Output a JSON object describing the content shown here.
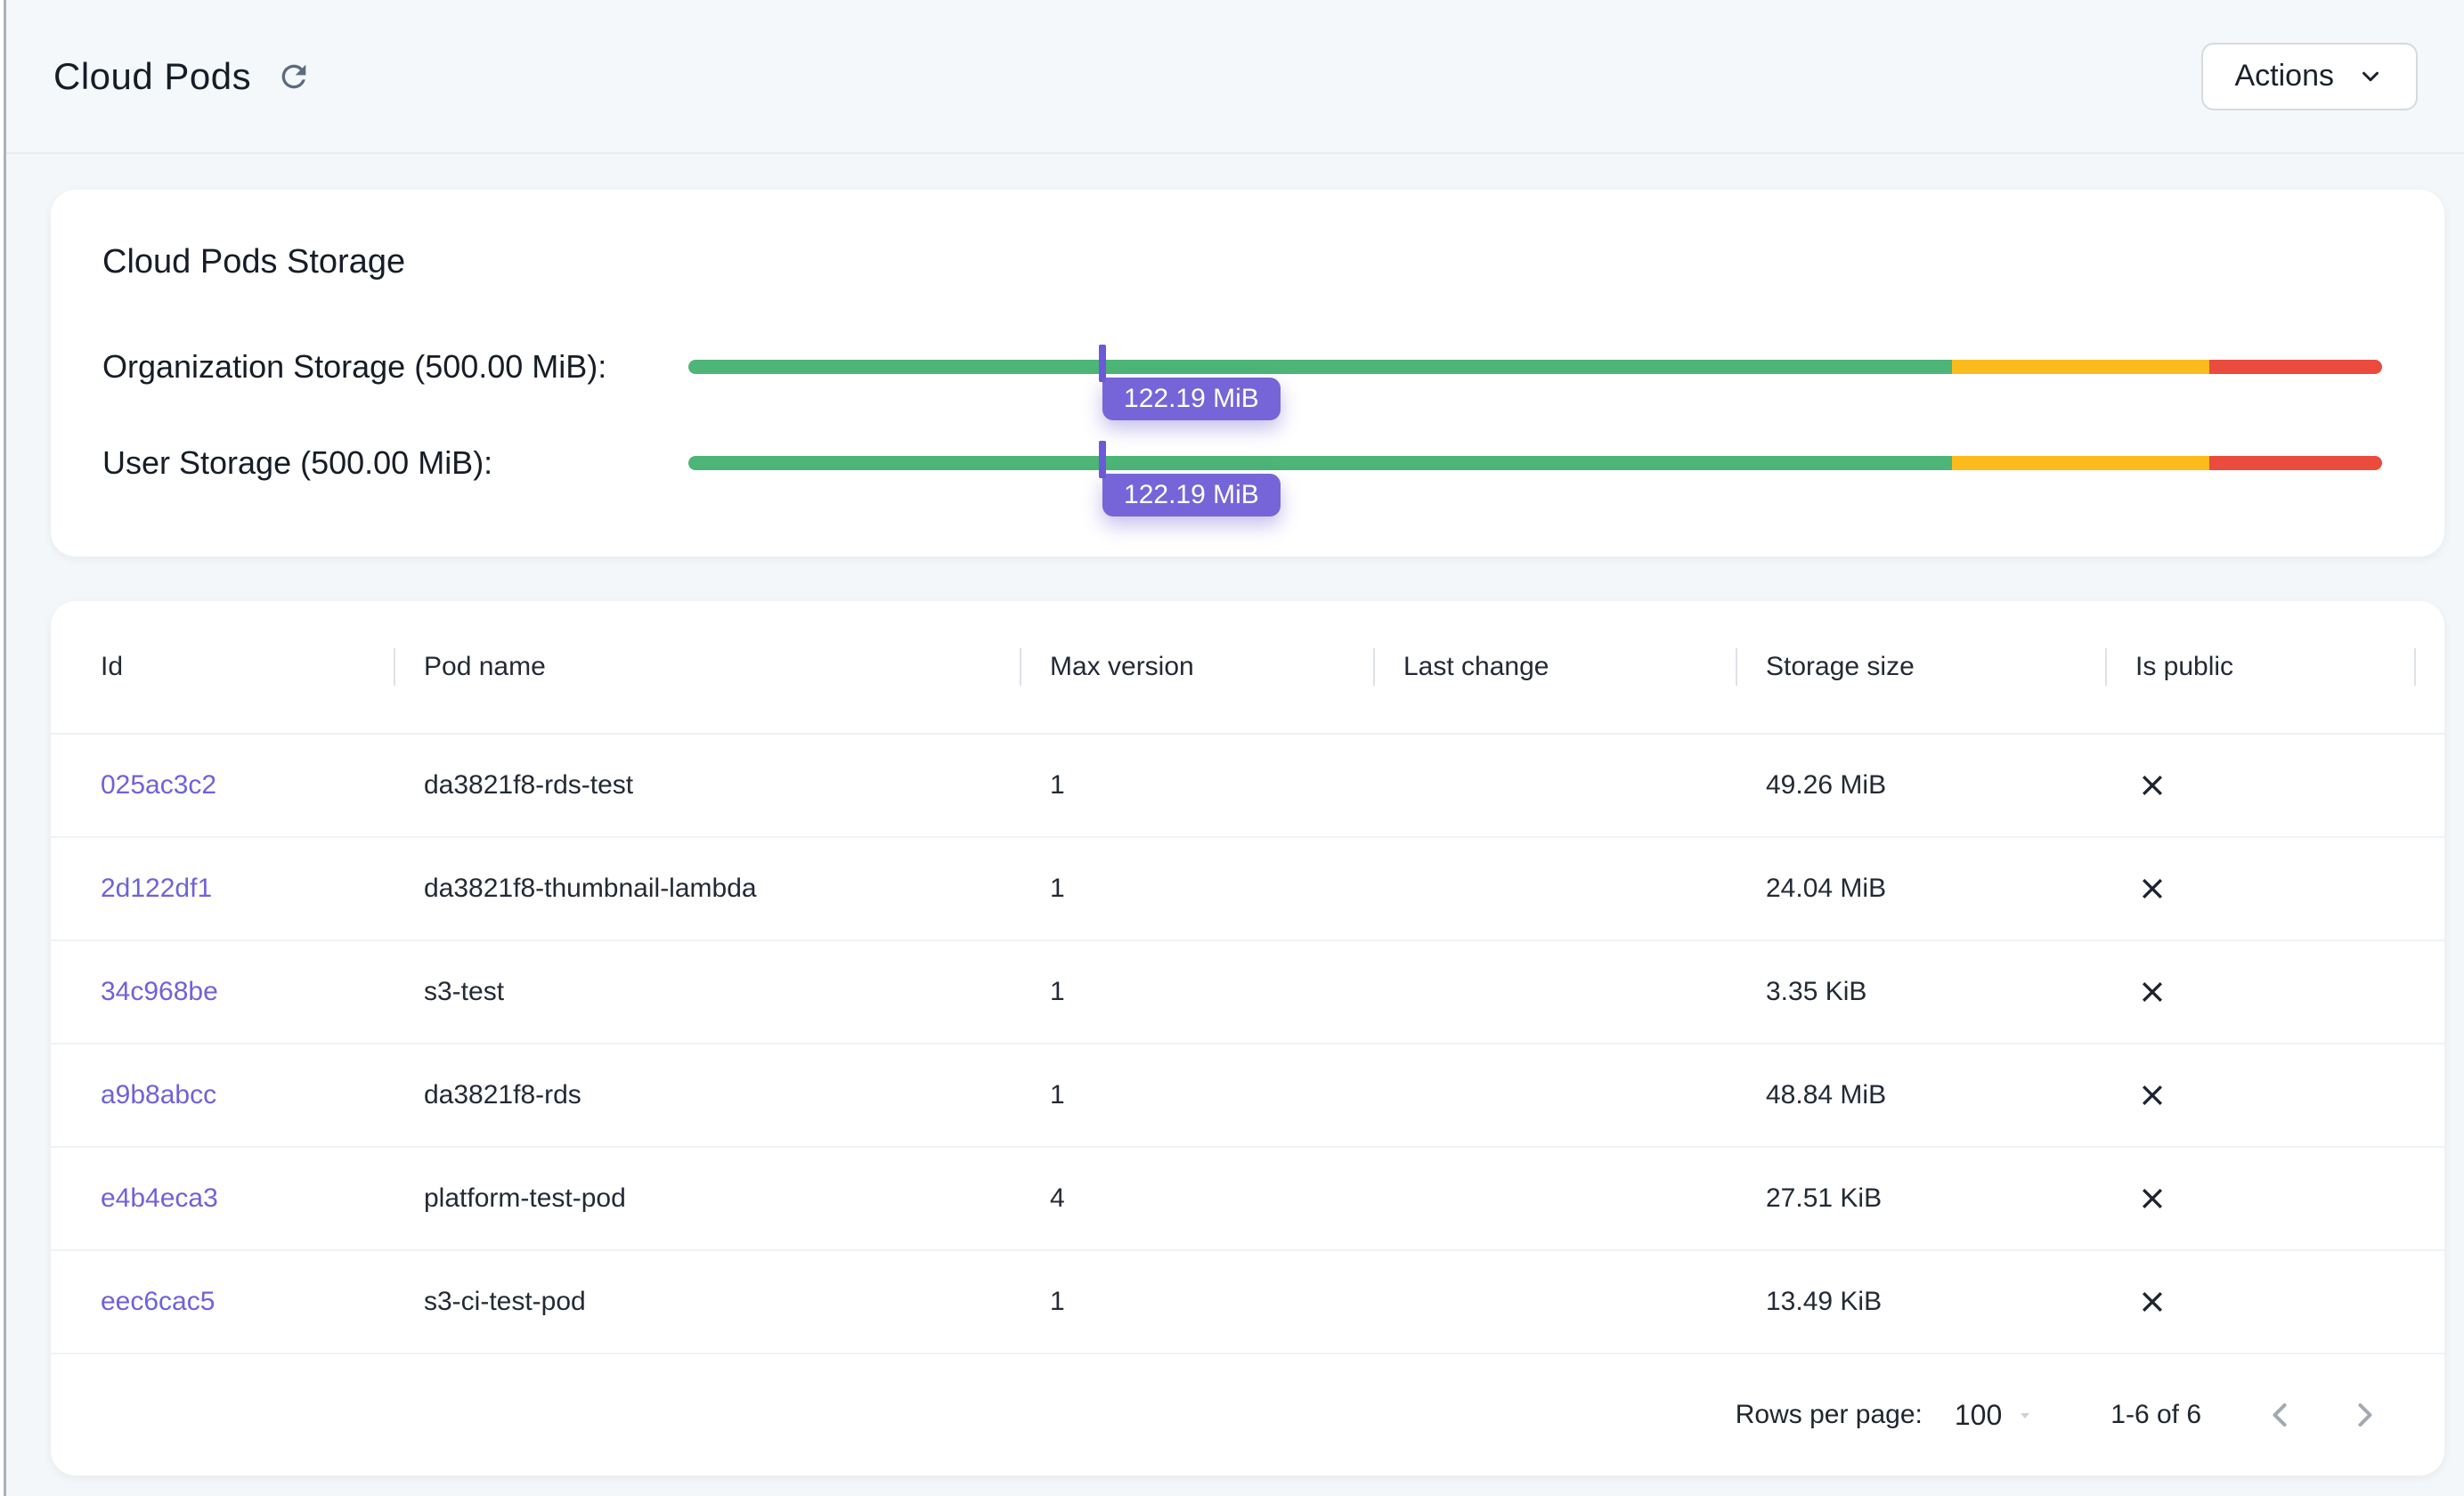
{
  "header": {
    "title": "Cloud Pods",
    "actions_label": "Actions"
  },
  "storage_card": {
    "title": "Cloud Pods Storage",
    "bars": [
      {
        "label": "Organization Storage (500.00 MiB):",
        "value_label": "122.19 MiB",
        "marker_pct": 24.45,
        "segments": [
          {
            "name": "green",
            "pct": 74.6,
            "color": "#4cb577"
          },
          {
            "name": "amber",
            "pct": 15.2,
            "color": "#fcbb1d"
          },
          {
            "name": "red",
            "pct": 10.2,
            "color": "#ea4b3c"
          }
        ]
      },
      {
        "label": "User Storage (500.00 MiB):",
        "value_label": "122.19 MiB",
        "marker_pct": 24.45,
        "segments": [
          {
            "name": "green",
            "pct": 74.6,
            "color": "#4cb577"
          },
          {
            "name": "amber",
            "pct": 15.2,
            "color": "#fcbb1d"
          },
          {
            "name": "red",
            "pct": 10.2,
            "color": "#ea4b3c"
          }
        ]
      }
    ]
  },
  "table": {
    "columns": [
      "Id",
      "Pod name",
      "Max version",
      "Last change",
      "Storage size",
      "Is public"
    ],
    "rows": [
      {
        "id": "025ac3c2",
        "pod_name": "da3821f8-rds-test",
        "max_version": "1",
        "last_change": "",
        "storage_size": "49.26 MiB",
        "is_public": false
      },
      {
        "id": "2d122df1",
        "pod_name": "da3821f8-thumbnail-lambda",
        "max_version": "1",
        "last_change": "",
        "storage_size": "24.04 MiB",
        "is_public": false
      },
      {
        "id": "34c968be",
        "pod_name": "s3-test",
        "max_version": "1",
        "last_change": "",
        "storage_size": "3.35 KiB",
        "is_public": false
      },
      {
        "id": "a9b8abcc",
        "pod_name": "da3821f8-rds",
        "max_version": "1",
        "last_change": "",
        "storage_size": "48.84 MiB",
        "is_public": false
      },
      {
        "id": "e4b4eca3",
        "pod_name": "platform-test-pod",
        "max_version": "4",
        "last_change": "",
        "storage_size": "27.51 KiB",
        "is_public": false
      },
      {
        "id": "eec6cac5",
        "pod_name": "s3-ci-test-pod",
        "max_version": "1",
        "last_change": "",
        "storage_size": "13.49 KiB",
        "is_public": false
      }
    ],
    "pagination": {
      "rows_per_page_label": "Rows per page:",
      "rows_per_page": "100",
      "range_label": "1-6 of 6"
    }
  },
  "colors": {
    "accent_purple": "#7565d9",
    "tick_purple": "#6c59d6",
    "link_purple": "#7161d8",
    "bar_green": "#4cb577",
    "bar_amber": "#fcbb1d",
    "bar_red": "#ea4b3c",
    "icon_gray": "#5b6b80",
    "pager_gray": "#a2a9b2"
  }
}
